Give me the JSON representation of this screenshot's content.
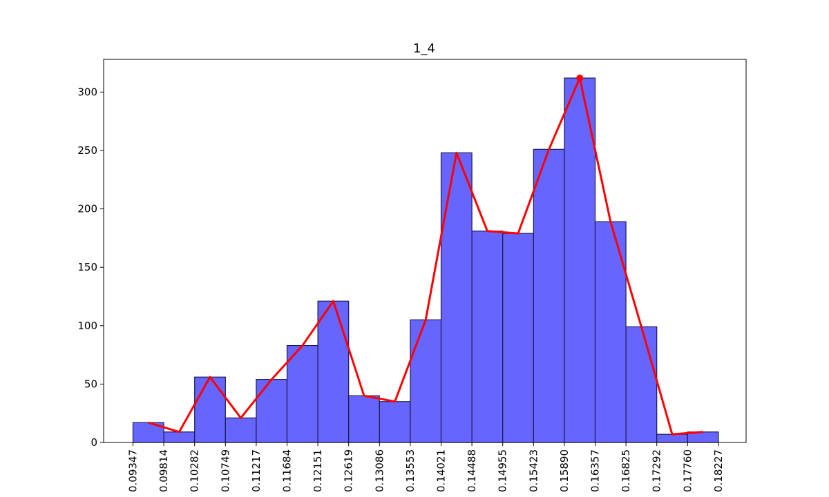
{
  "chart_data": {
    "type": "bar",
    "title": "1_4",
    "xlabel": "",
    "ylabel": "",
    "bin_edges": [
      "0.09347",
      "0.09814",
      "0.10282",
      "0.10749",
      "0.11217",
      "0.11684",
      "0.12151",
      "0.12619",
      "0.13086",
      "0.13553",
      "0.14021",
      "0.14488",
      "0.14955",
      "0.15423",
      "0.15890",
      "0.16357",
      "0.16825",
      "0.17292",
      "0.17760",
      "0.18227"
    ],
    "values": [
      17,
      9,
      56,
      21,
      54,
      83,
      121,
      40,
      35,
      105,
      248,
      181,
      179,
      251,
      312,
      189,
      99,
      7,
      9
    ],
    "ylim": [
      0,
      328
    ],
    "yticks": [
      0,
      50,
      100,
      150,
      200,
      250,
      300
    ],
    "bar_color": "#6666ff",
    "bar_edge_color": "#1a1a4d",
    "line_color": "#ff0000",
    "peak_marker": {
      "bin_index": 14,
      "value": 312
    },
    "grid": false,
    "legend": "none"
  }
}
